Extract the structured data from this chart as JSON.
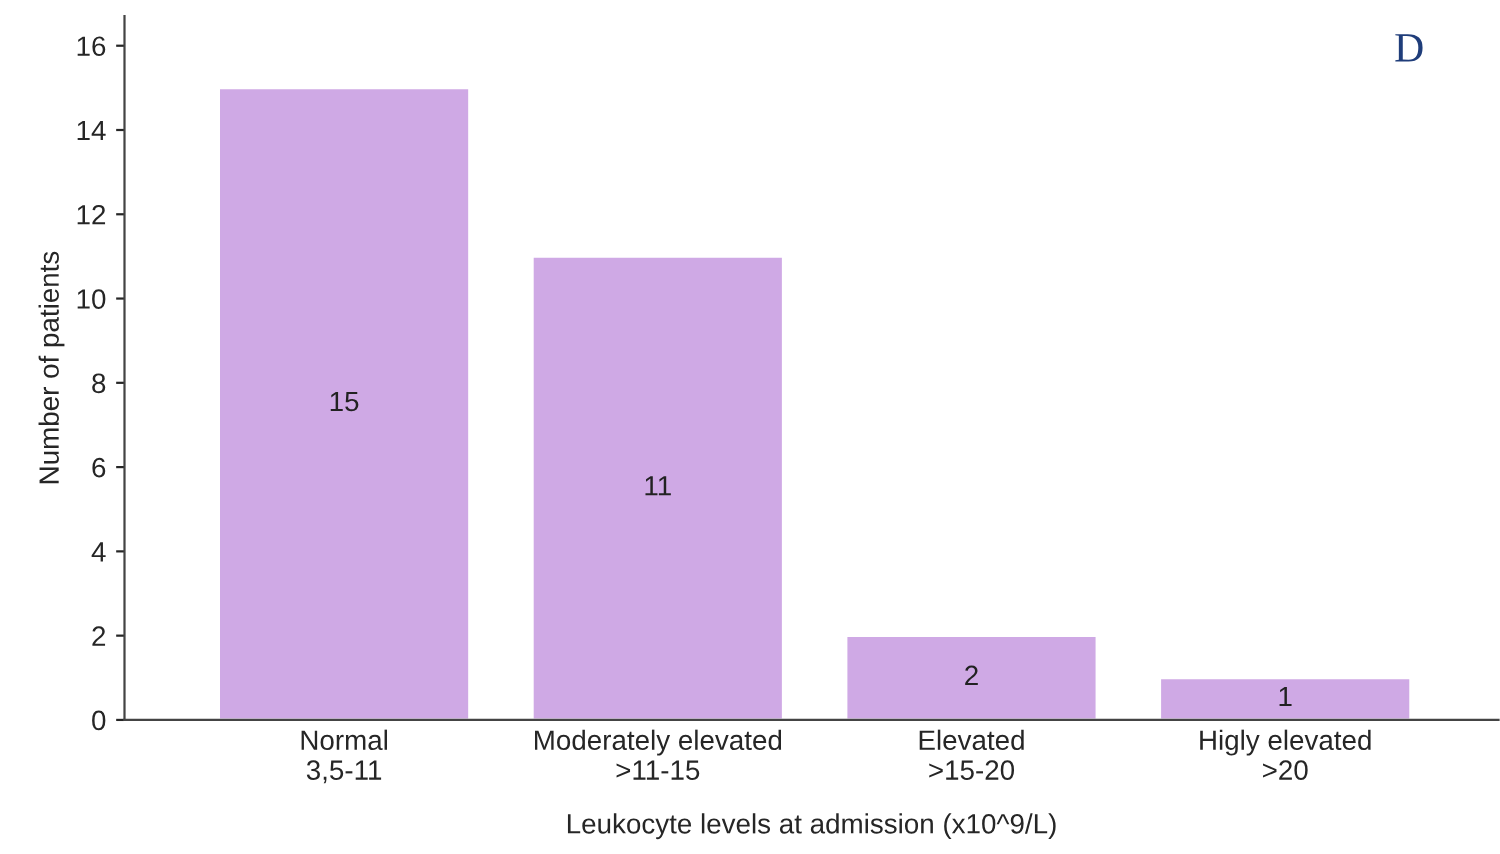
{
  "chart_data": {
    "type": "bar",
    "categories": [
      "Normal\n3,5-11",
      "Moderately elevated\n>11-15",
      "Elevated\n>15-20",
      "Higly elevated\n>20"
    ],
    "values": [
      15,
      11,
      2,
      1
    ],
    "color": "#cfa9e5",
    "xlabel": "Leukocyte levels at admission (x10^9/L)",
    "ylabel": "Number of patients",
    "ylim": [
      0,
      16.7
    ],
    "yticks": [
      0,
      2,
      4,
      6,
      8,
      10,
      12,
      14,
      16
    ],
    "data_labels": true,
    "grid": false,
    "legend": false,
    "annotations": [
      "D"
    ]
  }
}
